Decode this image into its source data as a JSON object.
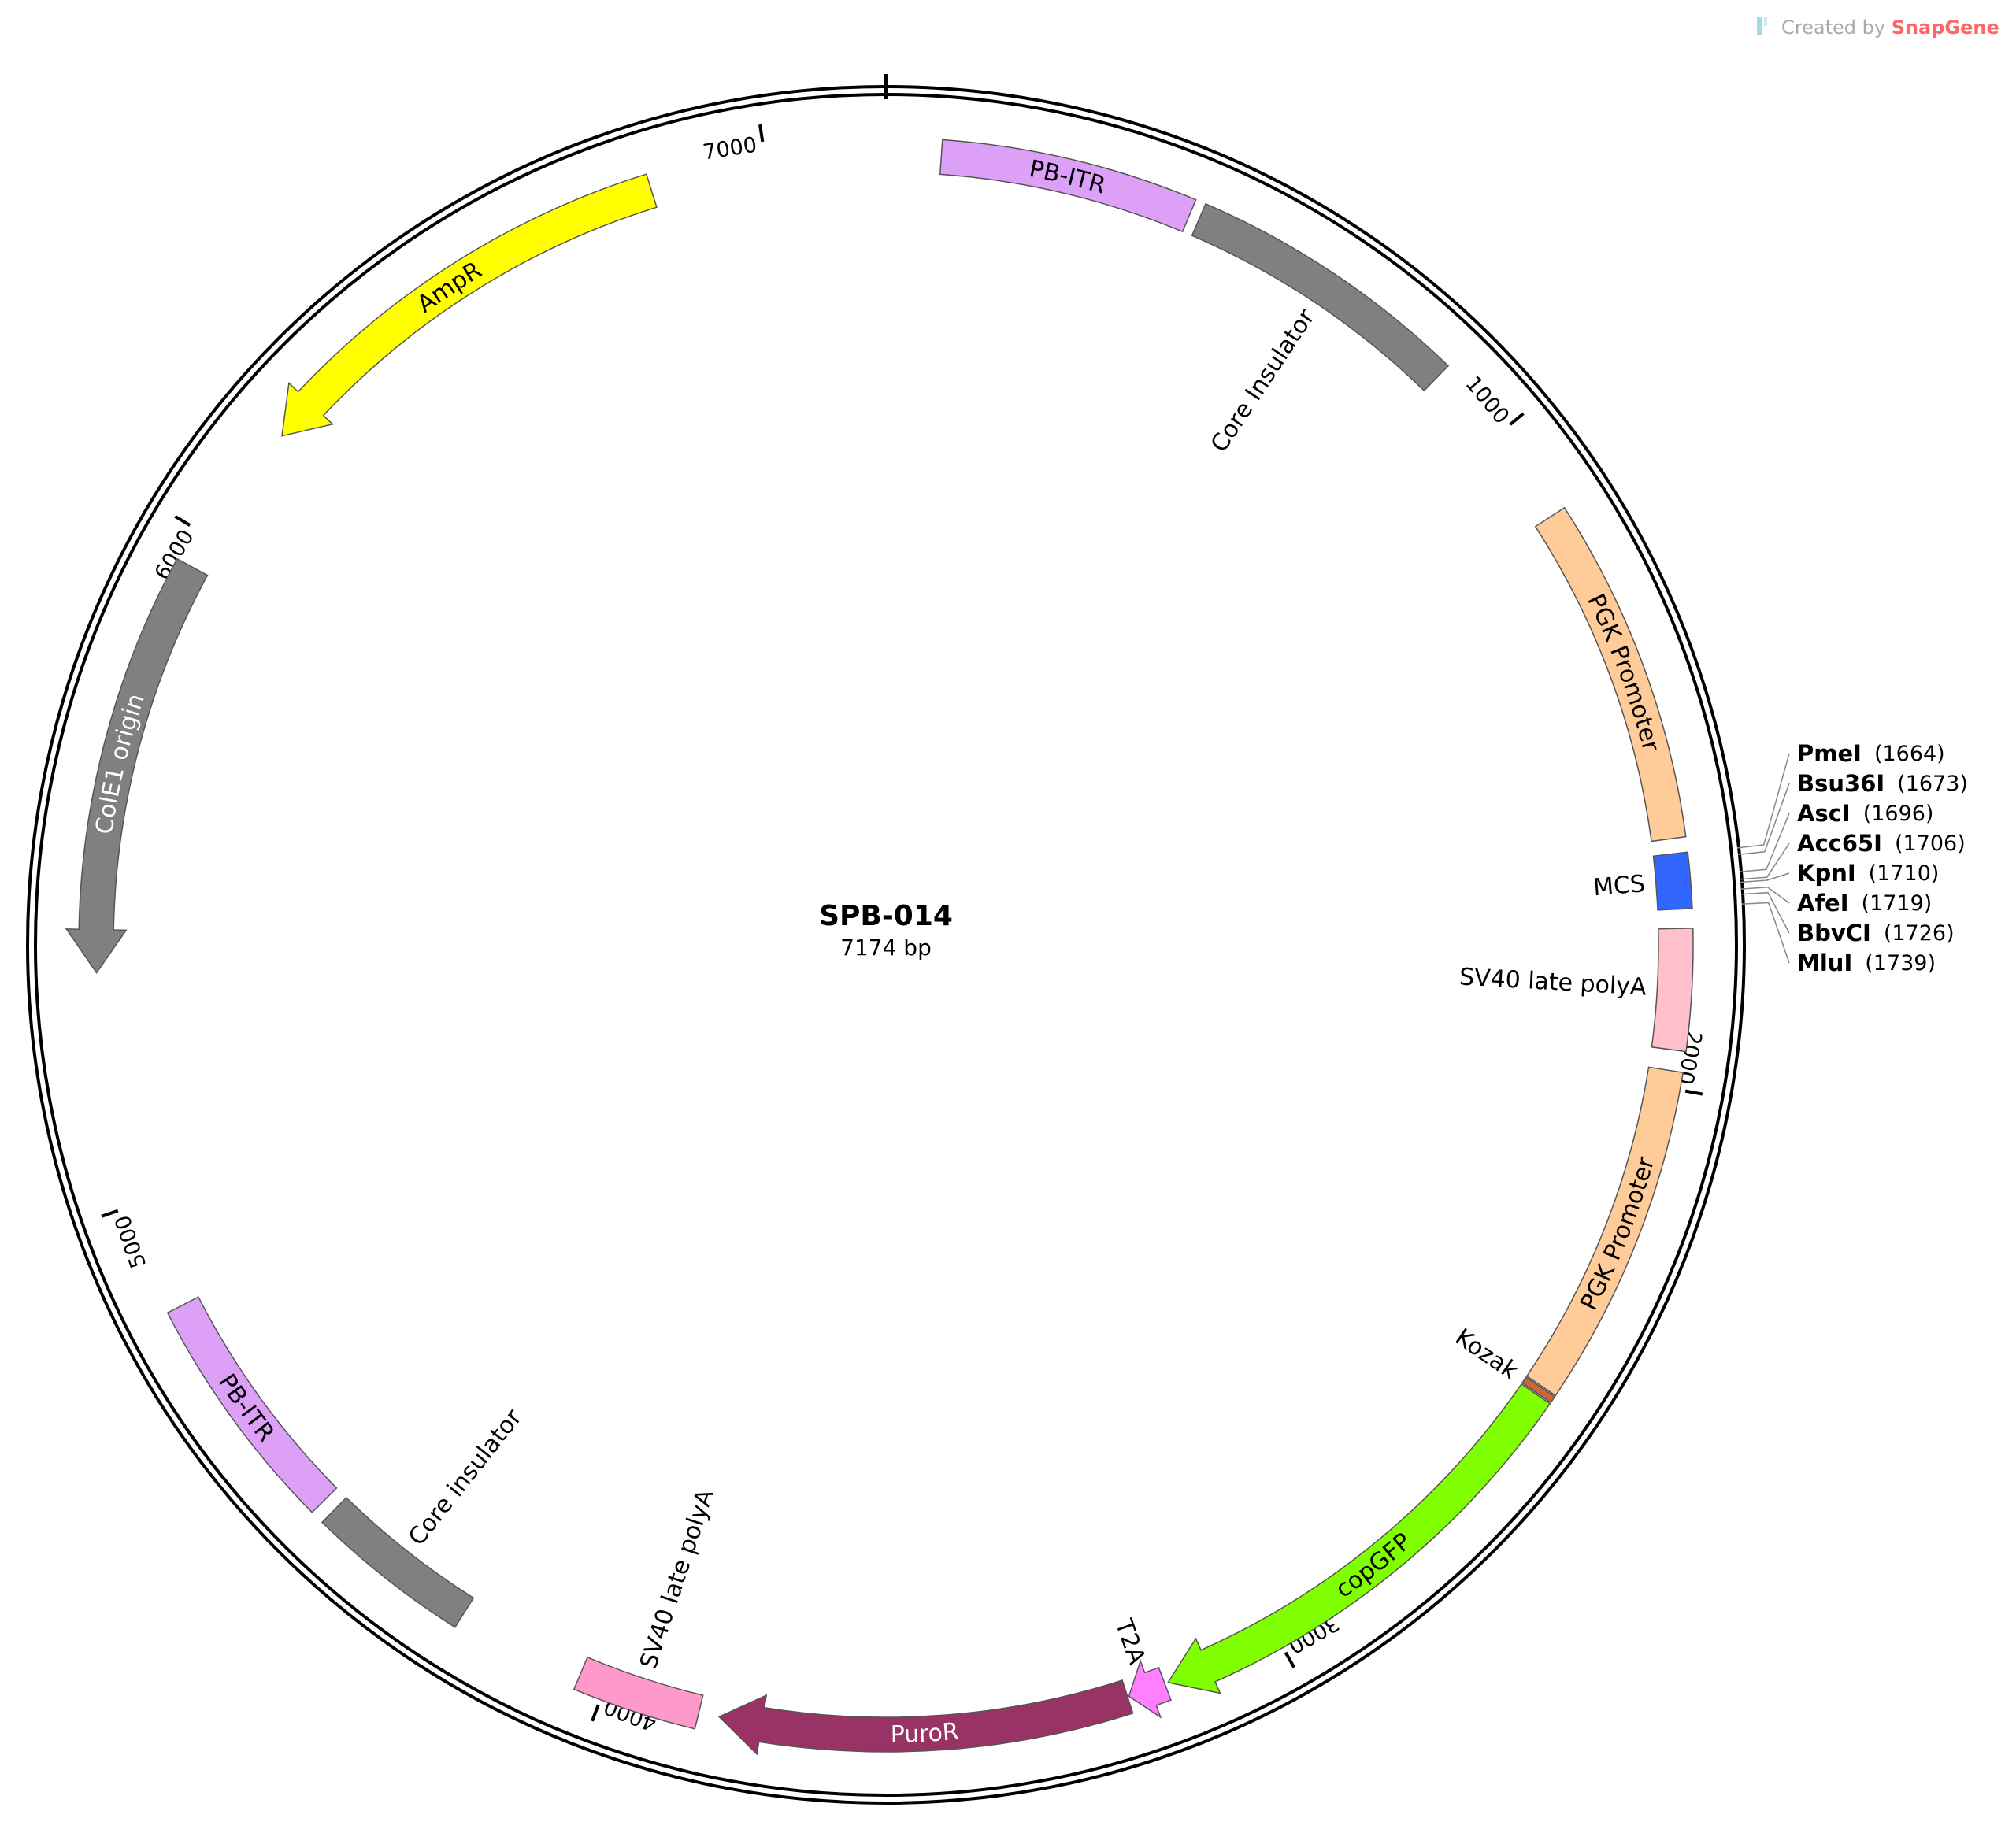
{
  "credit": {
    "prefix": "Created by ",
    "brand": "SnapGene"
  },
  "plasmid": {
    "name": "SPB-014",
    "size_label": "7174 bp",
    "length": 7174
  },
  "ticks": [
    {
      "pos": 1000,
      "label": "1000"
    },
    {
      "pos": 2000,
      "label": "2000"
    },
    {
      "pos": 3000,
      "label": "3000"
    },
    {
      "pos": 4000,
      "label": "4000"
    },
    {
      "pos": 5000,
      "label": "5000"
    },
    {
      "pos": 6000,
      "label": "6000"
    },
    {
      "pos": 7000,
      "label": "7000"
    }
  ],
  "features": [
    {
      "id": "pb-itr-1",
      "name": "PB-ITR",
      "start": 80,
      "end": 450,
      "color": "#dda0f7",
      "dir": "none",
      "label_inside": true,
      "label_color": "#000000"
    },
    {
      "id": "core-insulator-1",
      "name": "Core Insulator",
      "start": 465,
      "end": 880,
      "color": "#808080",
      "dir": "none",
      "label_inside": false
    },
    {
      "id": "pgk-promoter-1",
      "name": "PGK Promoter",
      "start": 1140,
      "end": 1640,
      "color": "#ffcc99",
      "dir": "none",
      "label_inside": true,
      "label_color": "#000000"
    },
    {
      "id": "mcs",
      "name": "MCS",
      "start": 1662,
      "end": 1742,
      "color": "#3366ff",
      "dir": "none",
      "label_inside": false
    },
    {
      "id": "sv40-polya-1",
      "name": "SV40 late polyA",
      "start": 1770,
      "end": 1945,
      "color": "#ffc0cb",
      "dir": "none",
      "label_inside": false
    },
    {
      "id": "pgk-promoter-2",
      "name": "PGK Promoter",
      "start": 1975,
      "end": 2470,
      "color": "#ffcc99",
      "dir": "none",
      "label_inside": true,
      "label_color": "#000000"
    },
    {
      "id": "kozak",
      "name": "Kozak",
      "start": 2472,
      "end": 2482,
      "color": "#cc6633",
      "dir": "none",
      "label_inside": false
    },
    {
      "id": "copgfp",
      "name": "copGFP",
      "start": 2484,
      "end": 3170,
      "color": "#80ff00",
      "dir": "fwd",
      "label_inside": true,
      "label_color": "#000000"
    },
    {
      "id": "t2a",
      "name": "T2A",
      "start": 3175,
      "end": 3230,
      "color": "#ff80ff",
      "dir": "fwd",
      "label_inside": false
    },
    {
      "id": "puror",
      "name": "PuroR",
      "start": 3232,
      "end": 3830,
      "color": "#993366",
      "dir": "fwd",
      "label_inside": true,
      "label_color": "#ffffff"
    },
    {
      "id": "sv40-polya-2",
      "name": "SV40 late polyA",
      "start": 3860,
      "end": 4040,
      "color": "#ff99cc",
      "dir": "none",
      "label_inside": false
    },
    {
      "id": "core-insulator-2",
      "name": "Core insulator",
      "start": 4230,
      "end": 4470,
      "color": "#808080",
      "dir": "none",
      "label_inside": false
    },
    {
      "id": "pb-itr-2",
      "name": "PB-ITR",
      "start": 4490,
      "end": 4840,
      "color": "#dda0f7",
      "dir": "none",
      "label_inside": true,
      "label_color": "#000000"
    },
    {
      "id": "cole1-origin",
      "name": "ColE1 origin",
      "start": 5340,
      "end": 5950,
      "color": "#808080",
      "dir": "rev",
      "label_inside": true,
      "label_color": "#ffffff"
    },
    {
      "id": "ampr",
      "name": "AmpR",
      "start": 6180,
      "end": 6830,
      "color": "#ffff00",
      "dir": "rev",
      "label_inside": true,
      "label_color": "#000000"
    }
  ],
  "sites": [
    {
      "name": "PmeI",
      "pos_label": "(1664)",
      "pos": 1664
    },
    {
      "name": "Bsu36I",
      "pos_label": "(1673)",
      "pos": 1673
    },
    {
      "name": "AscI",
      "pos_label": "(1696)",
      "pos": 1696
    },
    {
      "name": "Acc65I",
      "pos_label": "(1706)",
      "pos": 1706
    },
    {
      "name": "KpnI",
      "pos_label": "(1710)",
      "pos": 1710
    },
    {
      "name": "AfeI",
      "pos_label": "(1719)",
      "pos": 1719
    },
    {
      "name": "BbvCI",
      "pos_label": "(1726)",
      "pos": 1726
    },
    {
      "name": "MluI",
      "pos_label": "(1739)",
      "pos": 1739
    }
  ]
}
